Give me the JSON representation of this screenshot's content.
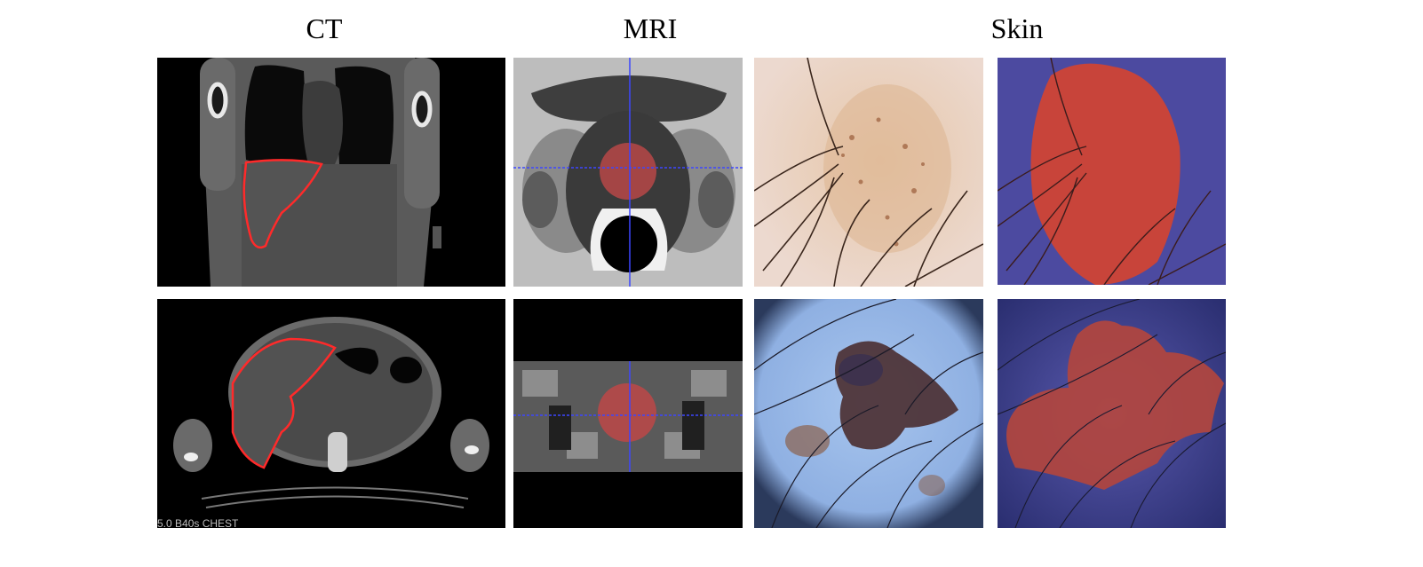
{
  "column_titles": {
    "ct": "CT",
    "mri": "MRI",
    "skin": "Skin"
  },
  "ct_axial_caption": "5.0 B40s CHEST",
  "colors": {
    "segmentation_outline": "#ff2a2a",
    "segmentation_fill": "#c8443a",
    "crosshair": "#3c46ff",
    "skin_overlay_background": "#4c4aa0"
  }
}
